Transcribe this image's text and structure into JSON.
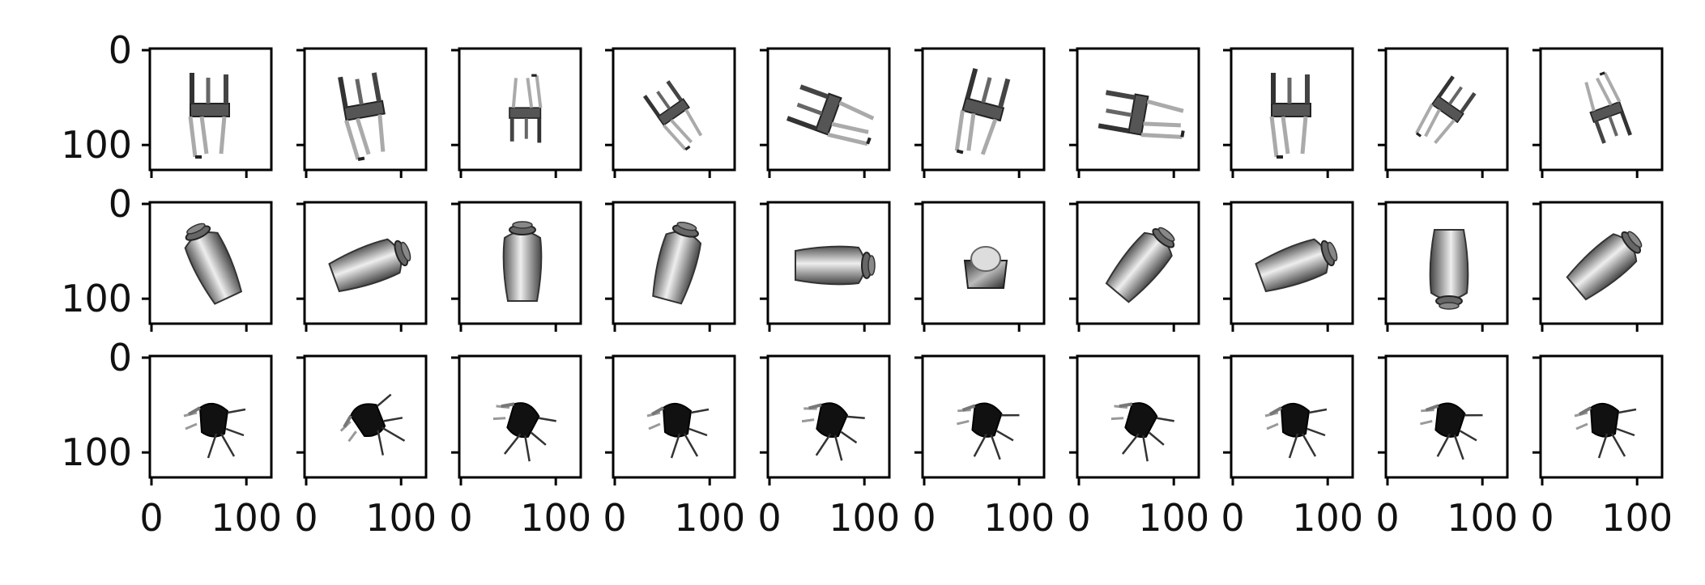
{
  "grid": {
    "rows": 3,
    "cols": 10
  },
  "y_tick_labels": [
    "0",
    "100"
  ],
  "x_tick_labels": [
    "0",
    "100"
  ],
  "rows": [
    {
      "object": "chair",
      "panels": [
        {
          "pose": "upright-legs-up"
        },
        {
          "pose": "upright-legs-up-2"
        },
        {
          "pose": "top-view"
        },
        {
          "pose": "tilted-left"
        },
        {
          "pose": "lying-side"
        },
        {
          "pose": "front-3q"
        },
        {
          "pose": "lying-back"
        },
        {
          "pose": "upright-legs-up"
        },
        {
          "pose": "tilted-right"
        },
        {
          "pose": "inverted"
        }
      ]
    },
    {
      "object": "vase",
      "panels": [
        {
          "angle": -25
        },
        {
          "angle": 70
        },
        {
          "angle": 0
        },
        {
          "angle": 15
        },
        {
          "angle": 90
        },
        {
          "angle": 0,
          "view": "end"
        },
        {
          "angle": 40
        },
        {
          "angle": 70
        },
        {
          "angle": 180
        },
        {
          "angle": 50
        }
      ]
    },
    {
      "object": "shell-chair",
      "panels": [
        {
          "pose": "side"
        },
        {
          "pose": "tilted"
        },
        {
          "pose": "leaning"
        },
        {
          "pose": "back"
        },
        {
          "pose": "wire-legs"
        },
        {
          "pose": "lying"
        },
        {
          "pose": "inverted"
        },
        {
          "pose": "wire-frame"
        },
        {
          "pose": "wire-frame-2"
        },
        {
          "pose": "lying-right"
        }
      ]
    }
  ]
}
